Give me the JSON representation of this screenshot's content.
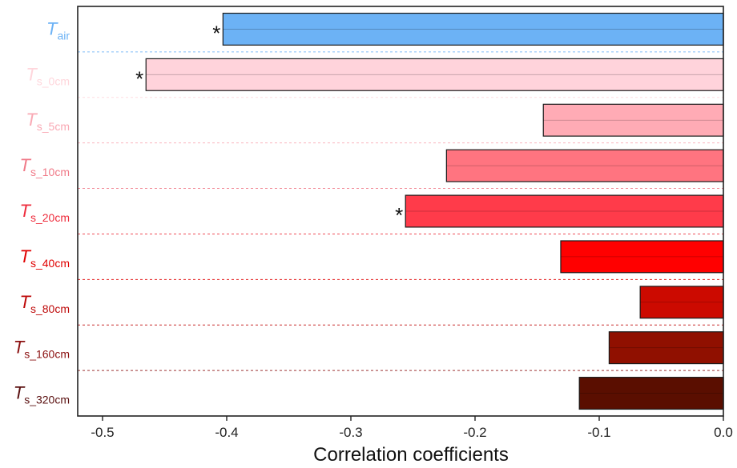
{
  "chart_data": {
    "type": "bar",
    "orientation": "horizontal",
    "title": "",
    "xlabel": "Correlation coefficients",
    "ylabel": "",
    "xlim": [
      -0.52,
      0.0
    ],
    "xticks": [
      -0.5,
      -0.4,
      -0.3,
      -0.2,
      -0.1,
      0.0
    ],
    "xtick_labels": [
      "-0.5",
      "-0.4",
      "-0.3",
      "-0.2",
      "-0.1",
      "0.0"
    ],
    "grid": false,
    "categories": [
      {
        "main": "T",
        "sub": "air",
        "value": -0.403,
        "color": "#6CB2F5",
        "label_color": "#6CB2F5",
        "significant": true
      },
      {
        "main": "T",
        "sub": "s_0cm",
        "value": -0.465,
        "color": "#FFD3DB",
        "label_color": "#FFD6DC",
        "significant": true
      },
      {
        "main": "T",
        "sub": "s_5cm",
        "value": -0.145,
        "color": "#FFABB5",
        "label_color": "#F9A9B4",
        "significant": false
      },
      {
        "main": "T",
        "sub": "s_10cm",
        "value": -0.223,
        "color": "#FF7480",
        "label_color": "#F07A88",
        "significant": false
      },
      {
        "main": "T",
        "sub": "s_20cm",
        "value": -0.256,
        "color": "#FF3B4A",
        "label_color": "#EE2C3C",
        "significant": true
      },
      {
        "main": "T",
        "sub": "s_40cm",
        "value": -0.131,
        "color": "#FF0000",
        "label_color": "#E00000",
        "significant": false
      },
      {
        "main": "T",
        "sub": "s_80cm",
        "value": -0.067,
        "color": "#CC0A00",
        "label_color": "#BE0A0A",
        "significant": false
      },
      {
        "main": "T",
        "sub": "s_160cm",
        "value": -0.092,
        "color": "#901000",
        "label_color": "#8B1010",
        "significant": false
      },
      {
        "main": "T",
        "sub": "s_320cm",
        "value": -0.116,
        "color": "#5A0E00",
        "label_color": "#5A1010",
        "significant": false
      }
    ],
    "significance_marker": "*"
  }
}
